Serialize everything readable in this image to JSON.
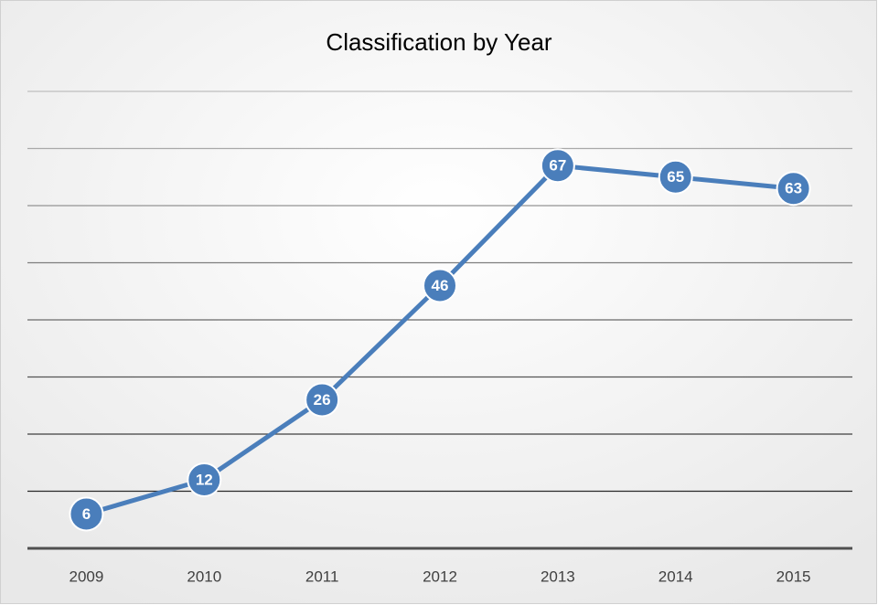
{
  "chart_data": {
    "type": "line",
    "title": "Classification by Year",
    "categories": [
      "2009",
      "2010",
      "2011",
      "2012",
      "2013",
      "2014",
      "2015"
    ],
    "series": [
      {
        "name": "Classification",
        "color": "#4a7ebb",
        "values": [
          6,
          12,
          26,
          46,
          67,
          65,
          63
        ]
      }
    ],
    "ylim": [
      0,
      80
    ],
    "yticks": [
      0,
      10,
      20,
      30,
      40,
      50,
      60,
      70,
      80
    ],
    "grid": true
  }
}
